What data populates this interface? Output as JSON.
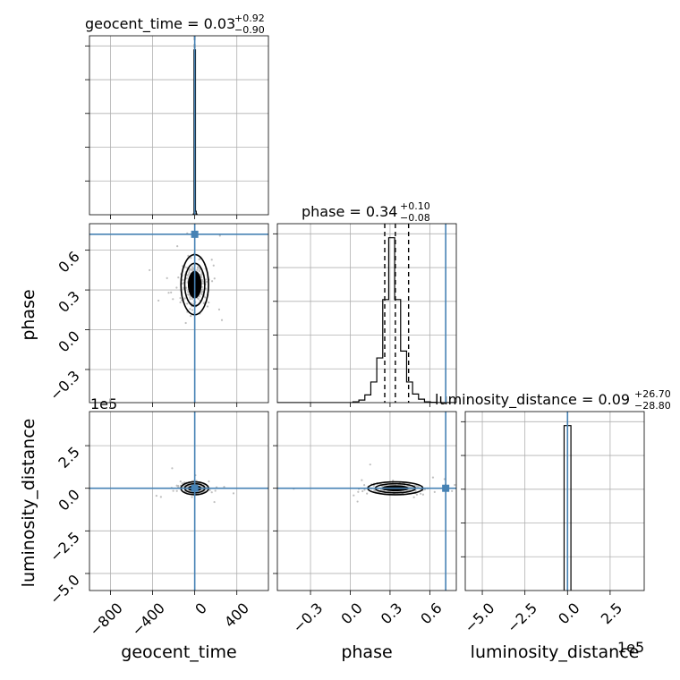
{
  "colors": {
    "truth": "#4682b4",
    "hist": "#000000",
    "scatter": "#bfbfbf",
    "contour": "#000000",
    "grid": "#b0b0b0"
  },
  "labels": {
    "x_geocent": "geocent_time",
    "x_phase": "phase",
    "x_lumdist": "luminosity_distance",
    "y_phase": "phase",
    "y_lumdist": "luminosity_distance",
    "multiplier_lumdist_y": "1e5",
    "multiplier_lumdist_x": "1e5"
  },
  "titles": {
    "geocent": {
      "name": "geocent_time",
      "median": "0.03",
      "plus": "+0.92",
      "minus": "−0.90"
    },
    "phase": {
      "name": "phase",
      "median": "0.34",
      "plus": "+0.10",
      "minus": "−0.08"
    },
    "lumdist": {
      "name": "luminosity_distance",
      "median": "0.09",
      "plus": "+26.70",
      "minus": "−28.80"
    }
  },
  "chart_data": {
    "type": "corner",
    "parameters": [
      "geocent_time",
      "phase",
      "luminosity_distance"
    ],
    "ranges": {
      "geocent_time": [
        -1000,
        700
      ],
      "phase": [
        -0.55,
        0.8
      ],
      "luminosity_distance": [
        -600000,
        450000
      ]
    },
    "ticks": {
      "geocent_time": {
        "values": [
          -800,
          -400,
          0,
          400
        ],
        "labels": [
          "−800",
          "−400",
          "0",
          "400"
        ]
      },
      "phase": {
        "values": [
          -0.3,
          0.0,
          0.3,
          0.6
        ],
        "labels": [
          "−0.3",
          "0.0",
          "0.3",
          "0.6"
        ]
      },
      "luminosity_distance": {
        "values": [
          -500000,
          -250000,
          0,
          250000
        ],
        "labels": [
          "−5.0",
          "−2.5",
          "0.0",
          "2.5"
        ]
      }
    },
    "truths": {
      "geocent_time": 0,
      "phase": 0.72,
      "luminosity_distance": 0
    },
    "grid": true,
    "histograms": {
      "geocent_time": {
        "bins": [
          -14,
          -7,
          0,
          7,
          14,
          21
        ],
        "counts": [
          0.004,
          0.96,
          0.96,
          0.02,
          0.004
        ],
        "quantiles": [
          -0.9,
          0.03,
          0.92
        ]
      },
      "phase": {
        "bins": [
          -0.55,
          0.02,
          0.065,
          0.11,
          0.155,
          0.2,
          0.245,
          0.29,
          0.335,
          0.38,
          0.425,
          0.47,
          0.515,
          0.56,
          0.605,
          0.65,
          0.8
        ],
        "counts": [
          0.0,
          0.005,
          0.015,
          0.045,
          0.12,
          0.26,
          0.6,
          0.96,
          0.6,
          0.3,
          0.12,
          0.05,
          0.02,
          0.005,
          0.002,
          0.0
        ],
        "quantiles": [
          0.26,
          0.34,
          0.44
        ]
      },
      "luminosity_distance": {
        "bins": [
          -20000,
          0,
          20000
        ],
        "counts": [
          0.96,
          0.96
        ],
        "quantiles": [
          -28.8,
          0.09,
          26.7
        ]
      }
    }
  }
}
